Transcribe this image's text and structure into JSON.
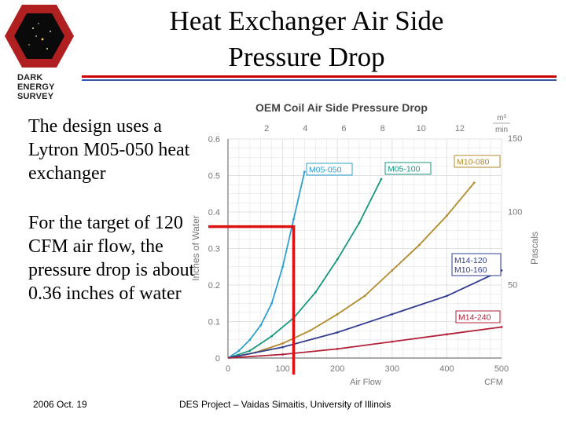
{
  "logo": {
    "line1": "DARK ENERGY",
    "line2": "SURVEY"
  },
  "slide_title": {
    "line1": "Heat Exchanger Air Side",
    "line2": "Pressure Drop"
  },
  "body": {
    "para1": "The design uses a Lytron M05-050 heat exchanger",
    "para2": "For the target of 120 CFM air flow, the pressure drop is about 0.36 inches of water"
  },
  "footer": {
    "date": "2006 Oct. 19",
    "project": "DES Project – Vaidas Simaitis,  University of Illinois"
  },
  "colors": {
    "accent_red": "#cc0000",
    "accent_blue": "#3355aa",
    "marker": "#dd1111"
  },
  "chart_data": {
    "type": "line",
    "title": "OEM Coil Air Side Pressure Drop",
    "xlabel": "Air Flow",
    "xunit": "CFM",
    "ylabel_left": "Inches of Water",
    "ylabel_right": "Pascals",
    "top_unit_num": "m³",
    "top_unit_den": "min",
    "xlim": [
      0,
      500
    ],
    "ylim": [
      0,
      0.6
    ],
    "x_ticks": [
      "0",
      "100",
      "200",
      "300",
      "400",
      "500"
    ],
    "y_ticks": [
      "0",
      "0.1",
      "0.2",
      "0.3",
      "0.4",
      "0.5",
      "0.6"
    ],
    "top_ticks": [
      "2",
      "4",
      "6",
      "8",
      "10",
      "12"
    ],
    "right_ticks": [
      "50",
      "100",
      "150"
    ],
    "series": [
      {
        "name": "M05-050",
        "color": "#2f9fd0",
        "x": [
          0,
          20,
          40,
          60,
          80,
          100,
          120,
          140
        ],
        "y": [
          0,
          0.02,
          0.05,
          0.09,
          0.15,
          0.25,
          0.38,
          0.51
        ]
      },
      {
        "name": "M05-100",
        "color": "#17977f",
        "x": [
          0,
          40,
          80,
          120,
          160,
          200,
          240,
          280
        ],
        "y": [
          0,
          0.02,
          0.06,
          0.11,
          0.18,
          0.27,
          0.37,
          0.49
        ]
      },
      {
        "name": "M10-080",
        "color": "#b38a2b",
        "x": [
          0,
          50,
          100,
          150,
          200,
          250,
          300,
          350,
          400,
          450
        ],
        "y": [
          0,
          0.015,
          0.04,
          0.075,
          0.12,
          0.17,
          0.24,
          0.31,
          0.39,
          0.48
        ]
      },
      {
        "name": "M14-120 M10-160",
        "color": "#333d8f",
        "x": [
          0,
          100,
          200,
          300,
          400,
          500
        ],
        "y": [
          0,
          0.03,
          0.07,
          0.12,
          0.17,
          0.24
        ]
      },
      {
        "name": "M14-240",
        "color": "#b3203a",
        "x": [
          0,
          100,
          200,
          300,
          400,
          500
        ],
        "y": [
          0,
          0.01,
          0.025,
          0.045,
          0.065,
          0.085
        ]
      }
    ],
    "annotation": {
      "type": "crosshair",
      "x": 120,
      "y": 0.36
    }
  }
}
